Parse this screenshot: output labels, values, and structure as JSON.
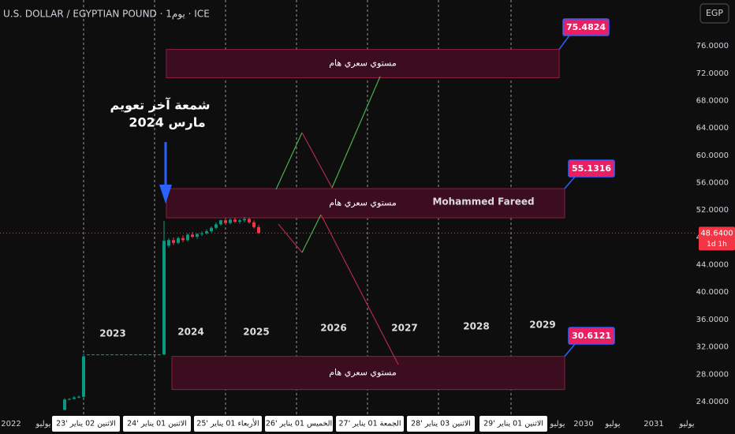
{
  "header": {
    "title": "U.S. DOLLAR / EGYPTIAN POUND · 1يوم · ICE",
    "currency": "EGP"
  },
  "chart_data": {
    "type": "candlestick",
    "open": [
      22.8,
      24.3,
      24.4,
      24.6,
      24.7,
      30.9,
      30.9,
      30.9,
      30.9,
      30.9,
      30.9,
      30.9,
      30.9,
      30.9,
      30.9,
      30.9,
      30.9,
      30.9,
      30.9,
      30.9,
      30.9,
      30.9,
      46.8,
      47.6,
      47.2,
      47.9,
      47.6,
      48.4,
      48.1,
      48.5,
      48.6,
      48.9,
      49.4,
      49.9,
      50.5,
      50.1,
      50.6,
      50.3,
      50.5,
      50.7,
      50.2,
      49.5
    ],
    "high": [
      24.5,
      24.5,
      24.8,
      24.9,
      31.0,
      30.9,
      30.9,
      30.9,
      30.9,
      30.9,
      30.9,
      30.9,
      30.9,
      30.9,
      30.9,
      30.9,
      30.9,
      30.9,
      30.9,
      30.9,
      30.9,
      50.4,
      47.9,
      48.0,
      48.1,
      48.3,
      48.6,
      48.8,
      48.6,
      48.9,
      49.2,
      49.6,
      50.2,
      50.6,
      50.9,
      50.8,
      50.9,
      50.7,
      51.0,
      50.9,
      50.5,
      49.8
    ],
    "low": [
      22.7,
      24.2,
      24.3,
      24.5,
      24.6,
      30.9,
      30.9,
      30.9,
      30.9,
      30.9,
      30.9,
      30.9,
      30.9,
      30.9,
      30.9,
      30.9,
      30.9,
      30.9,
      30.9,
      30.9,
      30.9,
      30.8,
      46.5,
      46.9,
      47.0,
      47.3,
      47.4,
      47.9,
      47.8,
      48.2,
      48.4,
      48.7,
      49.2,
      49.7,
      49.9,
      49.9,
      50.1,
      50.0,
      50.2,
      50.0,
      49.3,
      48.5
    ],
    "close": [
      24.3,
      24.4,
      24.6,
      24.7,
      30.6,
      30.9,
      30.9,
      30.9,
      30.9,
      30.9,
      30.9,
      30.9,
      30.9,
      30.9,
      30.9,
      30.9,
      30.9,
      30.9,
      30.9,
      30.9,
      30.9,
      47.5,
      47.6,
      47.2,
      47.9,
      47.6,
      48.4,
      48.1,
      48.5,
      48.6,
      48.9,
      49.4,
      49.9,
      50.5,
      50.1,
      50.6,
      50.3,
      50.5,
      50.7,
      50.2,
      49.5,
      48.64
    ],
    "up_color": "#089981",
    "down_color": "#f23645",
    "ylim": [
      22.15,
      82.7
    ],
    "yticks": [
      {
        "value": 24,
        "label": "24.0000"
      },
      {
        "value": 28,
        "label": "28.0000"
      },
      {
        "value": 32,
        "label": "32.0000"
      },
      {
        "value": 36,
        "label": "36.0000"
      },
      {
        "value": 40,
        "label": "40.0000"
      },
      {
        "value": 44,
        "label": "44.0000"
      },
      {
        "value": 48,
        "label": "48.0000"
      },
      {
        "value": 52,
        "label": "52.0000"
      },
      {
        "value": 56,
        "label": "56.0000"
      },
      {
        "value": 60,
        "label": "60.0000"
      },
      {
        "value": 64,
        "label": "64.0000"
      },
      {
        "value": 68,
        "label": "68.0000"
      },
      {
        "value": 72,
        "label": "72.0000"
      },
      {
        "value": 76,
        "label": "76.0000"
      }
    ],
    "last_price": {
      "value": 48.64,
      "label": "48.6400"
    },
    "countdown": "1d 1h",
    "time_labels": [
      "2022",
      "يوليو",
      "يوليو",
      "2030",
      "يوليو",
      "2031",
      "يوليو"
    ],
    "date_boxes": [
      "الاثنين 02 يناير '23",
      "الاثنين 01 يناير '24",
      "الأربعاء 01 يناير '25",
      "الخميس 01 يناير '26",
      "الجمعة 01 يناير '27",
      "الاثنين 03 يناير '28",
      "الاثنين 01 يناير '29"
    ],
    "year_labels": [
      "2023",
      "2024",
      "2025",
      "2026",
      "2027",
      "2028",
      "2029"
    ],
    "levels": [
      {
        "value": 75.4824,
        "label": "مستوي سعري هام"
      },
      {
        "value": 55.1316,
        "label": "مستوي سعري هام"
      },
      {
        "value": 30.6121,
        "label": "مستوي سعري هام"
      }
    ],
    "annotation": [
      "شمعة آخر تعويم",
      "مارس 2024"
    ],
    "watermark": "Mohammed Fareed"
  }
}
